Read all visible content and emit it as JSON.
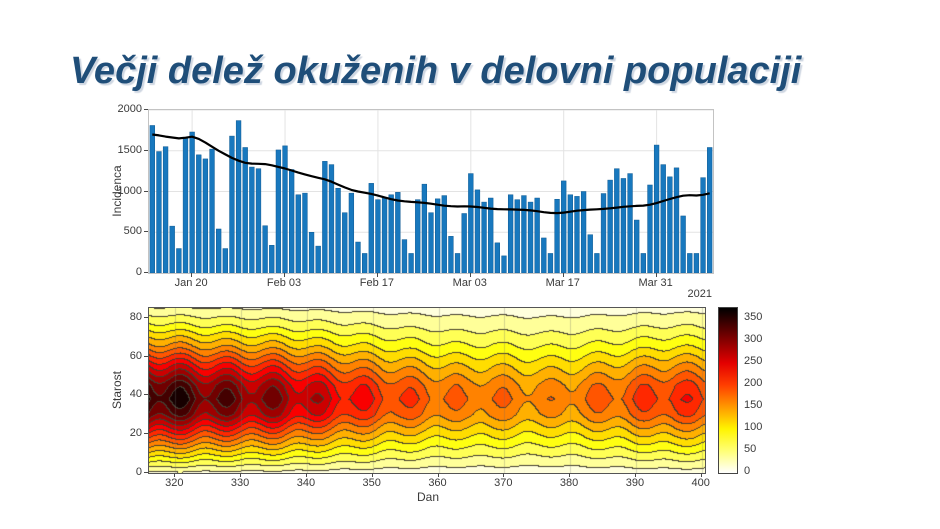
{
  "slide": {
    "title": "Večji delež okuženih v delovni populaciji",
    "title_color": "#1f4e79",
    "background": "#ffffff"
  },
  "chart_data": [
    {
      "type": "bar",
      "name": "daily-incidence",
      "ylabel": "Incidenca",
      "xlabel": "",
      "year_label": "2021",
      "ylim": [
        0,
        2000
      ],
      "yticks": [
        0,
        500,
        1000,
        1500,
        2000
      ],
      "xtick_labels": [
        "Jan 20",
        "Feb 03",
        "Feb 17",
        "Mar 03",
        "Mar 17",
        "Mar 31"
      ],
      "xtick_bar_index": [
        6,
        20,
        34,
        48,
        62,
        76
      ],
      "start_date": "Jan 14",
      "grid": true,
      "legend": "none",
      "bar_color": "#1878be",
      "bar_edge_color": "#0f5a92",
      "line_color": "#000000",
      "values": [
        1810,
        1490,
        1550,
        575,
        300,
        1650,
        1730,
        1450,
        1400,
        1520,
        540,
        300,
        1680,
        1870,
        1540,
        1300,
        1280,
        580,
        340,
        1510,
        1560,
        1270,
        960,
        980,
        500,
        330,
        1370,
        1330,
        1040,
        740,
        980,
        380,
        240,
        1100,
        900,
        920,
        960,
        990,
        410,
        240,
        900,
        1090,
        740,
        910,
        950,
        450,
        240,
        730,
        1220,
        1020,
        870,
        920,
        370,
        210,
        960,
        900,
        950,
        870,
        920,
        430,
        240,
        905,
        1130,
        960,
        940,
        1000,
        470,
        240,
        975,
        1140,
        1280,
        1160,
        1220,
        650,
        240,
        1080,
        1570,
        1330,
        1180,
        1290,
        700,
        240,
        240,
        1170,
        1540
      ],
      "moving_average": [
        1700,
        1688,
        1674,
        1662,
        1652,
        1660,
        1672,
        1645,
        1600,
        1550,
        1500,
        1455,
        1412,
        1378,
        1352,
        1342,
        1340,
        1336,
        1322,
        1302,
        1282,
        1258,
        1232,
        1210,
        1188,
        1168,
        1150,
        1120,
        1085,
        1050,
        1020,
        1000,
        985,
        970,
        950,
        928,
        905,
        890,
        880,
        872,
        868,
        860,
        850,
        838,
        826,
        820,
        816,
        818,
        816,
        810,
        800,
        790,
        784,
        782,
        780,
        778,
        774,
        768,
        758,
        746,
        737,
        735,
        741,
        752,
        764,
        772,
        778,
        782,
        787,
        794,
        802,
        812,
        819,
        823,
        827,
        838,
        858,
        884,
        908,
        930,
        948,
        954,
        951,
        960,
        978
      ]
    },
    {
      "type": "heatmap",
      "name": "incidence-by-age-contour",
      "ylabel": "Starost",
      "xlabel": "Dan",
      "xlim": [
        316,
        400.5
      ],
      "ylim": [
        0,
        85
      ],
      "xticks": [
        320,
        330,
        340,
        350,
        360,
        370,
        380,
        390,
        400
      ],
      "yticks": [
        0,
        20,
        40,
        60,
        80
      ],
      "levels_step": 25,
      "vmax": 375,
      "colormap": "hot-reversed",
      "contour_line_color": "#443e30",
      "grid": true,
      "colorbar_ticks": [
        0,
        50,
        100,
        150,
        200,
        250,
        300,
        350
      ],
      "colorbar_colors": {
        "values": [
          0,
          50,
          100,
          150,
          200,
          250,
          300,
          350,
          375
        ],
        "hex": [
          "#ffffff",
          "#ffff77",
          "#fff400",
          "#ff9900",
          "#ff3e00",
          "#e30000",
          "#880000",
          "#2d0000",
          "#000000"
        ]
      },
      "field": {
        "days": [
          316,
          320,
          324,
          328,
          332,
          336,
          340,
          344,
          348,
          352,
          356,
          360,
          364,
          368,
          372,
          376,
          380,
          384,
          388,
          392,
          396,
          400
        ],
        "trend": [
          365,
          350,
          330,
          318,
          305,
          295,
          272,
          250,
          230,
          210,
          196,
          183,
          172,
          176,
          168,
          162,
          168,
          178,
          190,
          205,
          218,
          208
        ],
        "ages": [
          0,
          10,
          20,
          30,
          38,
          45,
          55,
          65,
          75,
          85
        ],
        "age_profile": [
          0.06,
          0.34,
          0.62,
          0.9,
          1.0,
          0.93,
          0.7,
          0.45,
          0.24,
          0.07
        ],
        "weekly_ripple": {
          "amplitude": 0.08,
          "period": 7,
          "phase_day": 321
        }
      }
    }
  ]
}
